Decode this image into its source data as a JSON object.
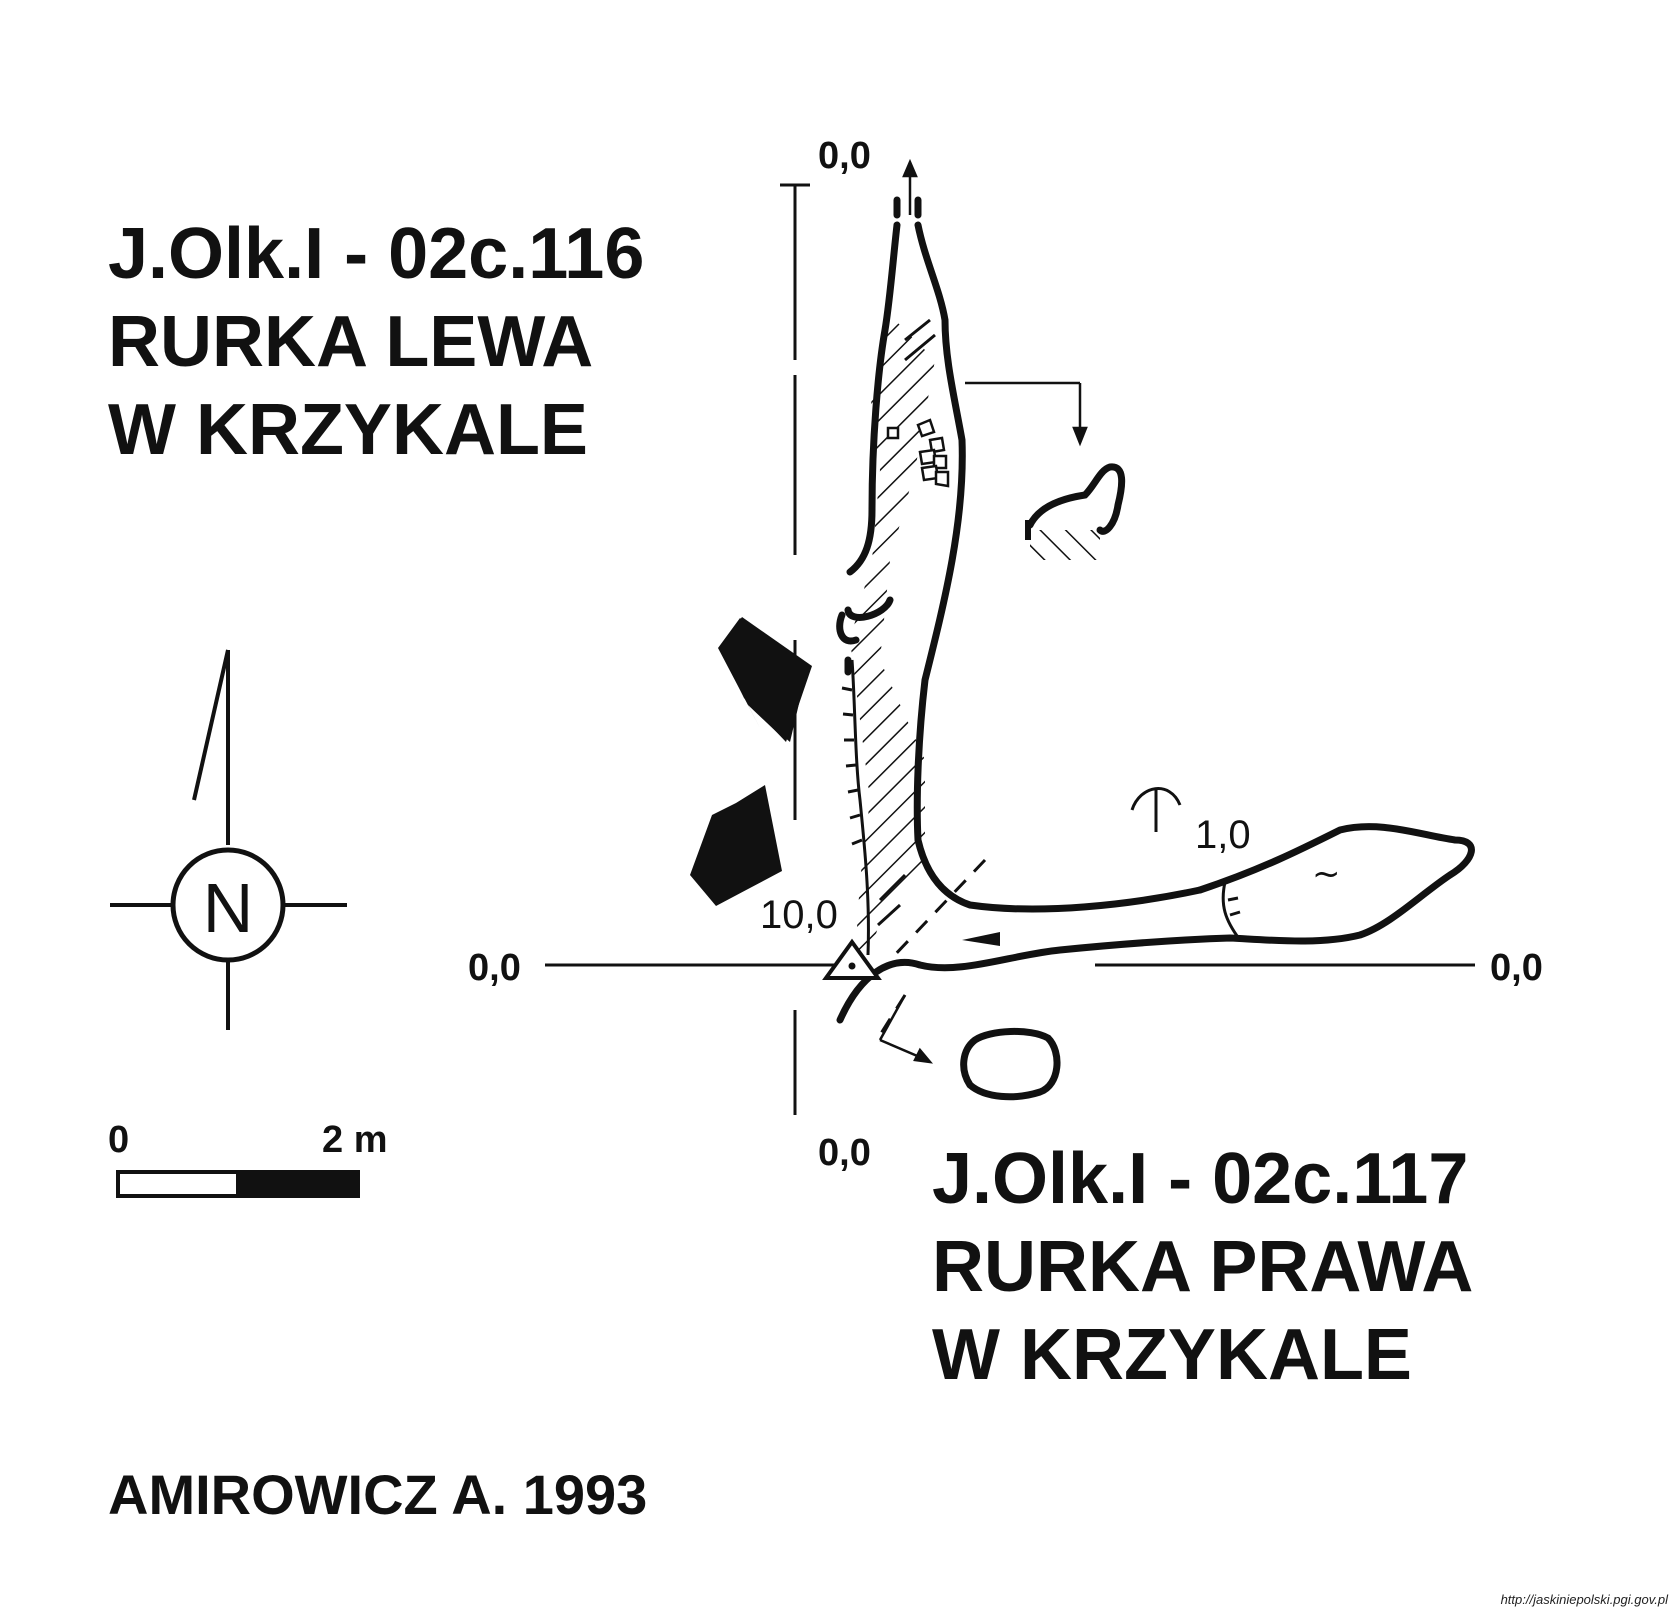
{
  "cave_left": {
    "id": "J.Olk.I - 02c.116",
    "name_line1": "RURKA LEWA",
    "name_line2": "W KRZYKALE"
  },
  "cave_right": {
    "id": "J.Olk.I - 02c.117",
    "name_line1": "RURKA PRAWA",
    "name_line2": "W KRZYKALE"
  },
  "author": "AMIROWICZ A. 1993",
  "source_url": "http://jaskiniepolski.pgi.gov.pl",
  "north_label": "N",
  "scale_bar": {
    "start_label": "0",
    "end_label": "2 m"
  },
  "section_labels": {
    "top": "0,0",
    "bottom": "0,0",
    "left": "0,0",
    "right": "0,0"
  },
  "elevations": {
    "entrance_depth": "10,0",
    "side_passage_height": "1,0"
  },
  "symbols": [
    "north-arrow-icon",
    "entrance-arrow-icon",
    "survey-station-icon",
    "water-tilde-icon",
    "chimney-icon"
  ]
}
